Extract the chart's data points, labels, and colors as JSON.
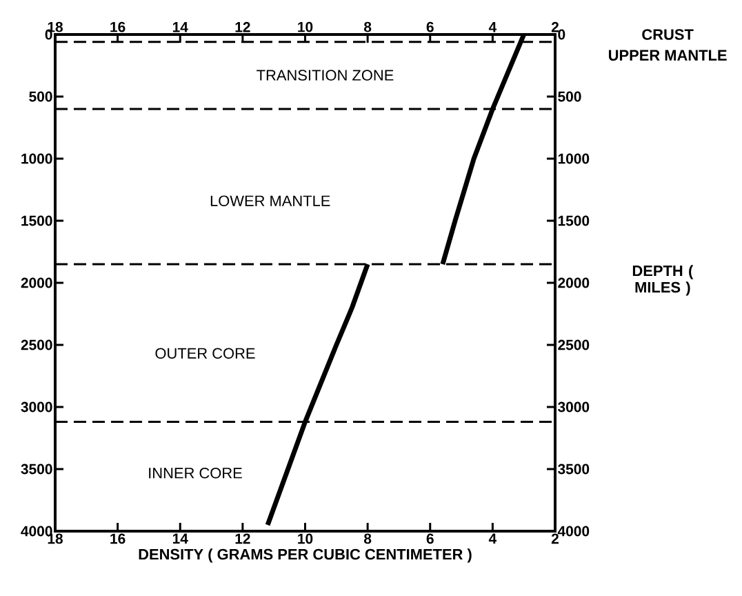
{
  "chart_data": {
    "type": "line",
    "xlabel": "DENSITY ( GRAMS PER CUBIC CENTIMETER )",
    "ylabel": "DEPTH ( MILES )",
    "xlim": [
      18,
      2
    ],
    "xticks": [
      18,
      16,
      14,
      12,
      10,
      8,
      6,
      4,
      2
    ],
    "x2lim": [
      18,
      2
    ],
    "x2ticks": [
      18,
      16,
      14,
      12,
      10,
      8,
      6,
      4,
      2
    ],
    "ylim": [
      4000,
      0
    ],
    "yticks": [
      0,
      500,
      1000,
      1500,
      2000,
      2500,
      3000,
      3500,
      4000
    ],
    "y2lim": [
      4000,
      0
    ],
    "y2ticks": [
      0,
      500,
      1000,
      1500,
      2000,
      2500,
      3000,
      3500,
      4000
    ],
    "series": [
      {
        "color": "#000000",
        "x": [
          3.0,
          3.5,
          4.0,
          4.6,
          5.2,
          5.6
        ],
        "values": [
          0,
          300,
          600,
          1000,
          1500,
          1850
        ]
      },
      {
        "color": "#000000",
        "x": [
          8.0,
          8.5,
          9.0,
          10.0,
          11.2
        ],
        "values": [
          1850,
          2200,
          2500,
          3120,
          3950
        ]
      }
    ],
    "ref_lines": [
      {
        "axis": "y",
        "value": 60,
        "color": "#000000",
        "line_style": "dashed"
      },
      {
        "axis": "y",
        "value": 600,
        "color": "#000000",
        "line_style": "dashed"
      },
      {
        "axis": "y",
        "value": 1850,
        "color": "#000000",
        "line_style": "dashed"
      },
      {
        "axis": "y",
        "value": 3120,
        "color": "#000000",
        "line_style": "dashed"
      }
    ],
    "annotations": [
      "TRANSITION ZONE",
      "LOWER MANTLE",
      "OUTER CORE",
      "INNER CORE",
      "CRUST",
      "UPPER MANTLE"
    ],
    "line_style": "solid"
  }
}
